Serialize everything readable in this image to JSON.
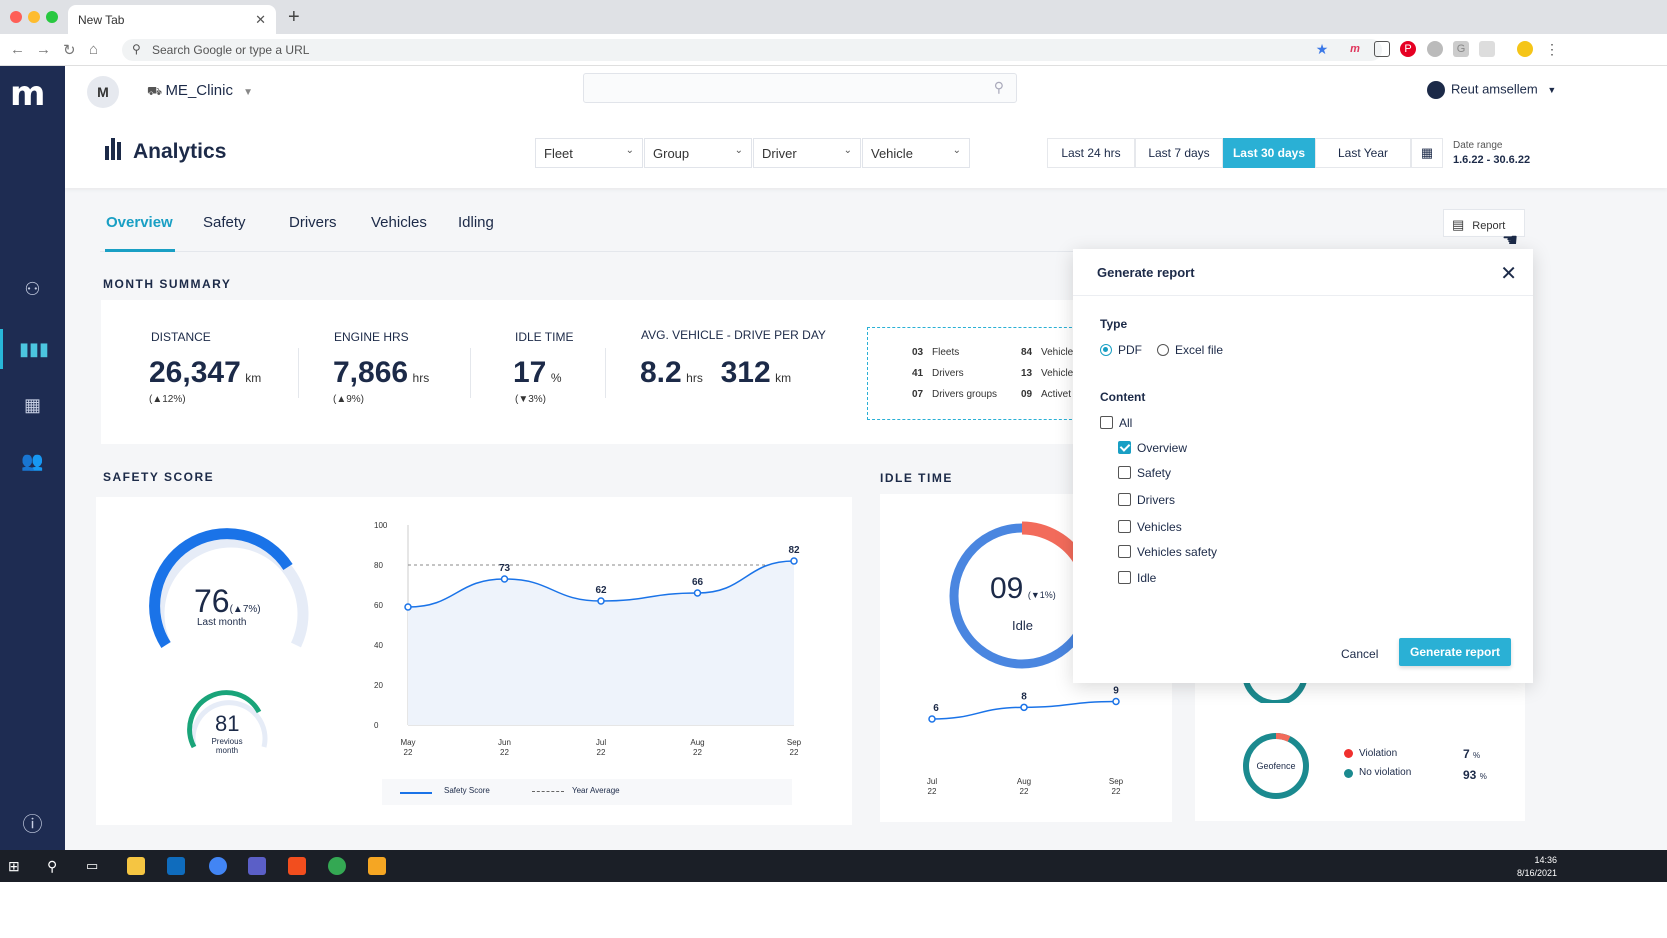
{
  "browser": {
    "tab_title": "New Tab",
    "address_placeholder": "Search Google or type a URL"
  },
  "header": {
    "avatar_letter": "M",
    "clinic_name": "ME_Clinic",
    "user_name": "Reut amsellem",
    "page_title": "Analytics",
    "filters": [
      "Fleet",
      "Group",
      "Driver",
      "Vehicle"
    ],
    "ranges": [
      "Last 24 hrs",
      "Last 7 days",
      "Last 30 days",
      "Last Year"
    ],
    "active_range": "Last 30 days",
    "date_range_label": "Date range",
    "date_range_value": "1.6.22 - 30.6.22"
  },
  "tabs": [
    "Overview",
    "Safety",
    "Drivers",
    "Vehicles",
    "Idling"
  ],
  "report_button": "Report",
  "month_summary": {
    "title": "MONTH SUMMARY",
    "distance": {
      "label": "DISTANCE",
      "value": "26,347",
      "unit": "km",
      "change": "(▲12%)"
    },
    "engine": {
      "label": "ENGINE HRS",
      "value": "7,866",
      "unit": "hrs",
      "change": "(▲9%)"
    },
    "idle": {
      "label": "IDLE TIME",
      "value": "17",
      "unit": "%",
      "change": "(▼3%)"
    },
    "avg": {
      "label": "AVG. VEHICLE - DRIVE PER DAY",
      "value1": "8.2",
      "unit1": "hrs",
      "value2": "312",
      "unit2": "km"
    },
    "counts": [
      {
        "n": "03",
        "label": "Fleets"
      },
      {
        "n": "84",
        "label": "Vehicle"
      },
      {
        "n": "41",
        "label": "Drivers"
      },
      {
        "n": "13",
        "label": "Vehicle"
      },
      {
        "n": "07",
        "label": "Drivers groups"
      },
      {
        "n": "09",
        "label": "Activet"
      }
    ]
  },
  "safety": {
    "title": "SAFETY SCORE",
    "score": "76",
    "score_change": "(▲7%)",
    "score_label": "Last month",
    "prev_score": "81",
    "prev_label": "Previous month",
    "legend_score": "Safety Score",
    "legend_avg": "Year Average"
  },
  "idle_time": {
    "title": "IDLE TIME",
    "value": "09",
    "change": "(▼1%)",
    "label": "Idle"
  },
  "geofence": {
    "label": "Geofence",
    "violation_label": "Violation",
    "violation_pct": "7",
    "no_violation_label": "No violation",
    "no_violation_pct": "93",
    "pct": "%"
  },
  "chart_data": [
    {
      "type": "line",
      "title": "Safety Score",
      "categories": [
        "May 22",
        "Jun 22",
        "Jul 22",
        "Aug 22",
        "Sep 22"
      ],
      "series": [
        {
          "name": "Safety Score",
          "values": [
            59,
            73,
            62,
            66,
            82
          ]
        },
        {
          "name": "Year Average",
          "values": [
            80,
            80,
            80,
            80,
            80
          ]
        }
      ],
      "yticks": [
        0,
        20,
        40,
        60,
        80,
        100
      ],
      "ylim": [
        0,
        100
      ],
      "data_labels": [
        "",
        "73",
        "62",
        "66",
        "82"
      ]
    },
    {
      "type": "line",
      "title": "Idle time",
      "categories": [
        "Jul 22",
        "Aug 22",
        "Sep 22"
      ],
      "series": [
        {
          "name": "Idle",
          "values": [
            6,
            8,
            9
          ]
        }
      ],
      "ylim": [
        0,
        12
      ]
    }
  ],
  "modal": {
    "title": "Generate report",
    "type_label": "Type",
    "type_options": [
      "PDF",
      "Excel file"
    ],
    "type_selected": "PDF",
    "content_label": "Content",
    "all_label": "All",
    "items": [
      {
        "label": "Overview",
        "checked": true
      },
      {
        "label": "Safety",
        "checked": false
      },
      {
        "label": "Drivers",
        "checked": false
      },
      {
        "label": "Vehicles",
        "checked": false
      },
      {
        "label": "Vehicles safety",
        "checked": false
      },
      {
        "label": "Idle",
        "checked": false
      }
    ],
    "cancel": "Cancel",
    "submit": "Generate report"
  },
  "taskbar": {
    "time": "14:36",
    "date": "8/16/2021"
  },
  "colors": {
    "accent": "#2ab0d5",
    "nav": "#1e2c52",
    "text": "#1c2a48",
    "red": "#f26b5b",
    "teal": "#1b8a8f"
  }
}
